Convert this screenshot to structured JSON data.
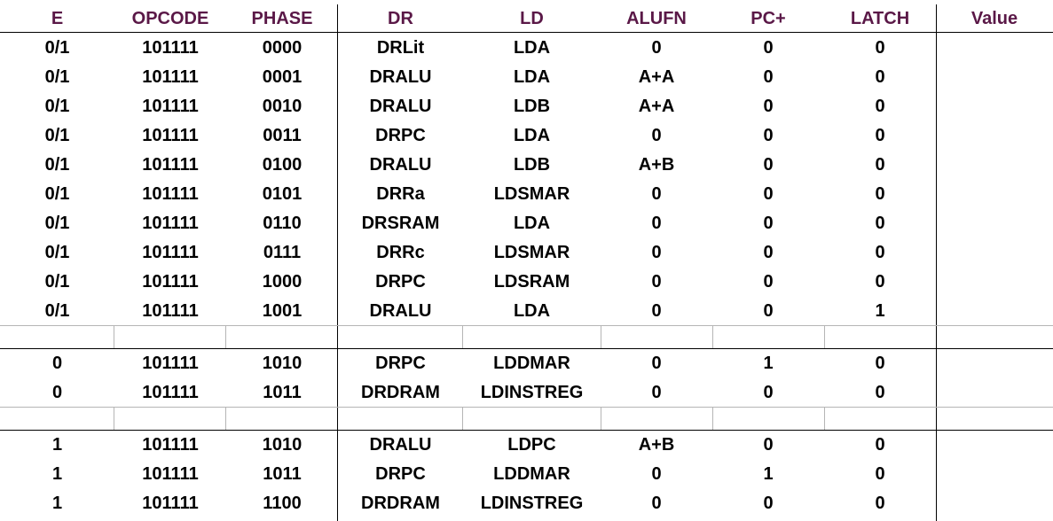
{
  "headers": [
    "E",
    "OPCODE",
    "PHASE",
    "DR",
    "LD",
    "ALUFN",
    "PC+",
    "LATCH",
    "Value"
  ],
  "groups": [
    {
      "rows": [
        [
          "0/1",
          "101111",
          "0000",
          "DRLit",
          "LDA",
          "0",
          "0",
          "0",
          ""
        ],
        [
          "0/1",
          "101111",
          "0001",
          "DRALU",
          "LDA",
          "A+A",
          "0",
          "0",
          ""
        ],
        [
          "0/1",
          "101111",
          "0010",
          "DRALU",
          "LDB",
          "A+A",
          "0",
          "0",
          ""
        ],
        [
          "0/1",
          "101111",
          "0011",
          "DRPC",
          "LDA",
          "0",
          "0",
          "0",
          ""
        ],
        [
          "0/1",
          "101111",
          "0100",
          "DRALU",
          "LDB",
          "A+B",
          "0",
          "0",
          ""
        ],
        [
          "0/1",
          "101111",
          "0101",
          "DRRa",
          "LDSMAR",
          "0",
          "0",
          "0",
          ""
        ],
        [
          "0/1",
          "101111",
          "0110",
          "DRSRAM",
          "LDA",
          "0",
          "0",
          "0",
          ""
        ],
        [
          "0/1",
          "101111",
          "0111",
          "DRRc",
          "LDSMAR",
          "0",
          "0",
          "0",
          ""
        ],
        [
          "0/1",
          "101111",
          "1000",
          "DRPC",
          "LDSRAM",
          "0",
          "0",
          "0",
          ""
        ],
        [
          "0/1",
          "101111",
          "1001",
          "DRALU",
          "LDA",
          "0",
          "0",
          "1",
          ""
        ]
      ]
    },
    {
      "rows": [
        [
          "0",
          "101111",
          "1010",
          "DRPC",
          "LDDMAR",
          "0",
          "1",
          "0",
          ""
        ],
        [
          "0",
          "101111",
          "1011",
          "DRDRAM",
          "LDINSTREG",
          "0",
          "0",
          "0",
          ""
        ]
      ]
    },
    {
      "rows": [
        [
          "1",
          "101111",
          "1010",
          "DRALU",
          "LDPC",
          "A+B",
          "0",
          "0",
          ""
        ],
        [
          "1",
          "101111",
          "1011",
          "DRPC",
          "LDDMAR",
          "0",
          "1",
          "0",
          ""
        ],
        [
          "1",
          "101111",
          "1100",
          "DRDRAM",
          "LDINSTREG",
          "0",
          "0",
          "0",
          ""
        ]
      ]
    }
  ],
  "colors": {
    "header_text": "#5a1847",
    "body_text": "#000000",
    "grid_light": "#b5b5b5",
    "grid_dark": "#000000"
  }
}
